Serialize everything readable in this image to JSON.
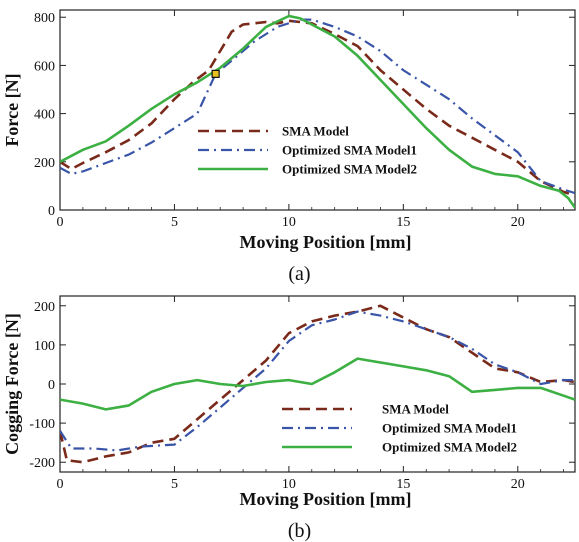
{
  "chart_data": [
    {
      "type": "line",
      "panel_label": "(a)",
      "xlabel": "Moving Position [mm]",
      "ylabel": "Force [N]",
      "xlim": [
        0,
        22.5
      ],
      "ylim": [
        0,
        830
      ],
      "xticks": [
        0,
        5,
        10,
        15,
        20
      ],
      "yticks": [
        0,
        200,
        400,
        600,
        800
      ],
      "legend_position": "center-left",
      "marker": {
        "x": 6.8,
        "y": 565
      },
      "series": [
        {
          "name": "SMA Model",
          "color": "#7a2a1a",
          "dash": "dashed",
          "points": [
            [
              0,
              200
            ],
            [
              0.5,
              170
            ],
            [
              1,
              195
            ],
            [
              2,
              240
            ],
            [
              3,
              290
            ],
            [
              4,
              360
            ],
            [
              5,
              460
            ],
            [
              5.8,
              530
            ],
            [
              6.5,
              580
            ],
            [
              7,
              660
            ],
            [
              7.5,
              740
            ],
            [
              8,
              770
            ],
            [
              9,
              780
            ],
            [
              9.5,
              775
            ],
            [
              10,
              785
            ],
            [
              11,
              775
            ],
            [
              12,
              730
            ],
            [
              13,
              680
            ],
            [
              14,
              580
            ],
            [
              15,
              500
            ],
            [
              16,
              420
            ],
            [
              17,
              350
            ],
            [
              18,
              300
            ],
            [
              19,
              250
            ],
            [
              20,
              200
            ],
            [
              21,
              120
            ],
            [
              22,
              75
            ],
            [
              22.5,
              60
            ]
          ]
        },
        {
          "name": "Optimized SMA Model1",
          "color": "#3a55a8",
          "dash": "dashdot",
          "points": [
            [
              0,
              175
            ],
            [
              0.5,
              150
            ],
            [
              1,
              160
            ],
            [
              2,
              195
            ],
            [
              3,
              230
            ],
            [
              4,
              280
            ],
            [
              5,
              340
            ],
            [
              6,
              400
            ],
            [
              6.8,
              565
            ],
            [
              7.5,
              620
            ],
            [
              8.5,
              700
            ],
            [
              9.5,
              760
            ],
            [
              10.5,
              790
            ],
            [
              11,
              790
            ],
            [
              12,
              760
            ],
            [
              13,
              720
            ],
            [
              14,
              660
            ],
            [
              15,
              580
            ],
            [
              16,
              520
            ],
            [
              17,
              460
            ],
            [
              18,
              380
            ],
            [
              19,
              310
            ],
            [
              20,
              240
            ],
            [
              21,
              120
            ],
            [
              22,
              85
            ],
            [
              22.5,
              70
            ]
          ]
        },
        {
          "name": "Optimized SMA Model2",
          "color": "#3cb043",
          "dash": "solid",
          "points": [
            [
              0,
              200
            ],
            [
              1,
              250
            ],
            [
              2,
              285
            ],
            [
              3,
              350
            ],
            [
              4,
              420
            ],
            [
              5,
              480
            ],
            [
              6,
              530
            ],
            [
              7,
              590
            ],
            [
              8,
              670
            ],
            [
              9,
              760
            ],
            [
              10,
              805
            ],
            [
              10.5,
              795
            ],
            [
              11,
              770
            ],
            [
              12,
              720
            ],
            [
              13,
              640
            ],
            [
              14,
              540
            ],
            [
              15,
              440
            ],
            [
              16,
              340
            ],
            [
              17,
              250
            ],
            [
              18,
              180
            ],
            [
              19,
              150
            ],
            [
              20,
              140
            ],
            [
              21,
              100
            ],
            [
              21.8,
              80
            ],
            [
              22.2,
              50
            ],
            [
              22.5,
              10
            ]
          ]
        }
      ]
    },
    {
      "type": "line",
      "panel_label": "(b)",
      "xlabel": "Moving Position [mm]",
      "ylabel": "Cogging Force [N]",
      "xlim": [
        0,
        22.5
      ],
      "ylim": [
        -225,
        225
      ],
      "xticks": [
        0,
        5,
        10,
        15,
        20
      ],
      "yticks": [
        -200,
        -100,
        0,
        100,
        200
      ],
      "legend_position": "bottom-right",
      "series": [
        {
          "name": "SMA Model",
          "color": "#7a2a1a",
          "dash": "dashed",
          "points": [
            [
              0,
              -120
            ],
            [
              0.3,
              -195
            ],
            [
              1,
              -200
            ],
            [
              2,
              -185
            ],
            [
              3,
              -175
            ],
            [
              4,
              -150
            ],
            [
              5,
              -140
            ],
            [
              6,
              -90
            ],
            [
              7,
              -40
            ],
            [
              8,
              10
            ],
            [
              9,
              60
            ],
            [
              10,
              130
            ],
            [
              11,
              160
            ],
            [
              12,
              175
            ],
            [
              13,
              185
            ],
            [
              14,
              200
            ],
            [
              15,
              170
            ],
            [
              16,
              140
            ],
            [
              17,
              120
            ],
            [
              18,
              80
            ],
            [
              19,
              40
            ],
            [
              20,
              30
            ],
            [
              21,
              5
            ],
            [
              22,
              10
            ],
            [
              22.5,
              5
            ]
          ]
        },
        {
          "name": "Optimized SMA Model1",
          "color": "#3a55a8",
          "dash": "dashdot",
          "points": [
            [
              0,
              -120
            ],
            [
              0.5,
              -165
            ],
            [
              1.5,
              -165
            ],
            [
              2.5,
              -170
            ],
            [
              3.5,
              -160
            ],
            [
              5,
              -155
            ],
            [
              6,
              -110
            ],
            [
              7,
              -60
            ],
            [
              8,
              -10
            ],
            [
              9,
              40
            ],
            [
              10,
              110
            ],
            [
              11,
              150
            ],
            [
              12,
              165
            ],
            [
              13,
              185
            ],
            [
              14,
              175
            ],
            [
              15,
              160
            ],
            [
              16,
              140
            ],
            [
              17,
              120
            ],
            [
              18,
              90
            ],
            [
              19,
              50
            ],
            [
              20,
              30
            ],
            [
              21,
              0
            ],
            [
              22,
              10
            ],
            [
              22.5,
              10
            ]
          ]
        },
        {
          "name": "Optimized SMA Model2",
          "color": "#3cb043",
          "dash": "solid",
          "points": [
            [
              0,
              -40
            ],
            [
              1,
              -50
            ],
            [
              2,
              -65
            ],
            [
              3,
              -55
            ],
            [
              4,
              -20
            ],
            [
              5,
              0
            ],
            [
              6,
              10
            ],
            [
              7,
              0
            ],
            [
              8,
              -5
            ],
            [
              9,
              5
            ],
            [
              10,
              10
            ],
            [
              11,
              0
            ],
            [
              12,
              30
            ],
            [
              13,
              65
            ],
            [
              14,
              55
            ],
            [
              15,
              45
            ],
            [
              16,
              35
            ],
            [
              17,
              20
            ],
            [
              18,
              -20
            ],
            [
              19,
              -15
            ],
            [
              20,
              -10
            ],
            [
              21,
              -10
            ],
            [
              22,
              -30
            ],
            [
              22.5,
              -40
            ]
          ]
        }
      ]
    }
  ]
}
